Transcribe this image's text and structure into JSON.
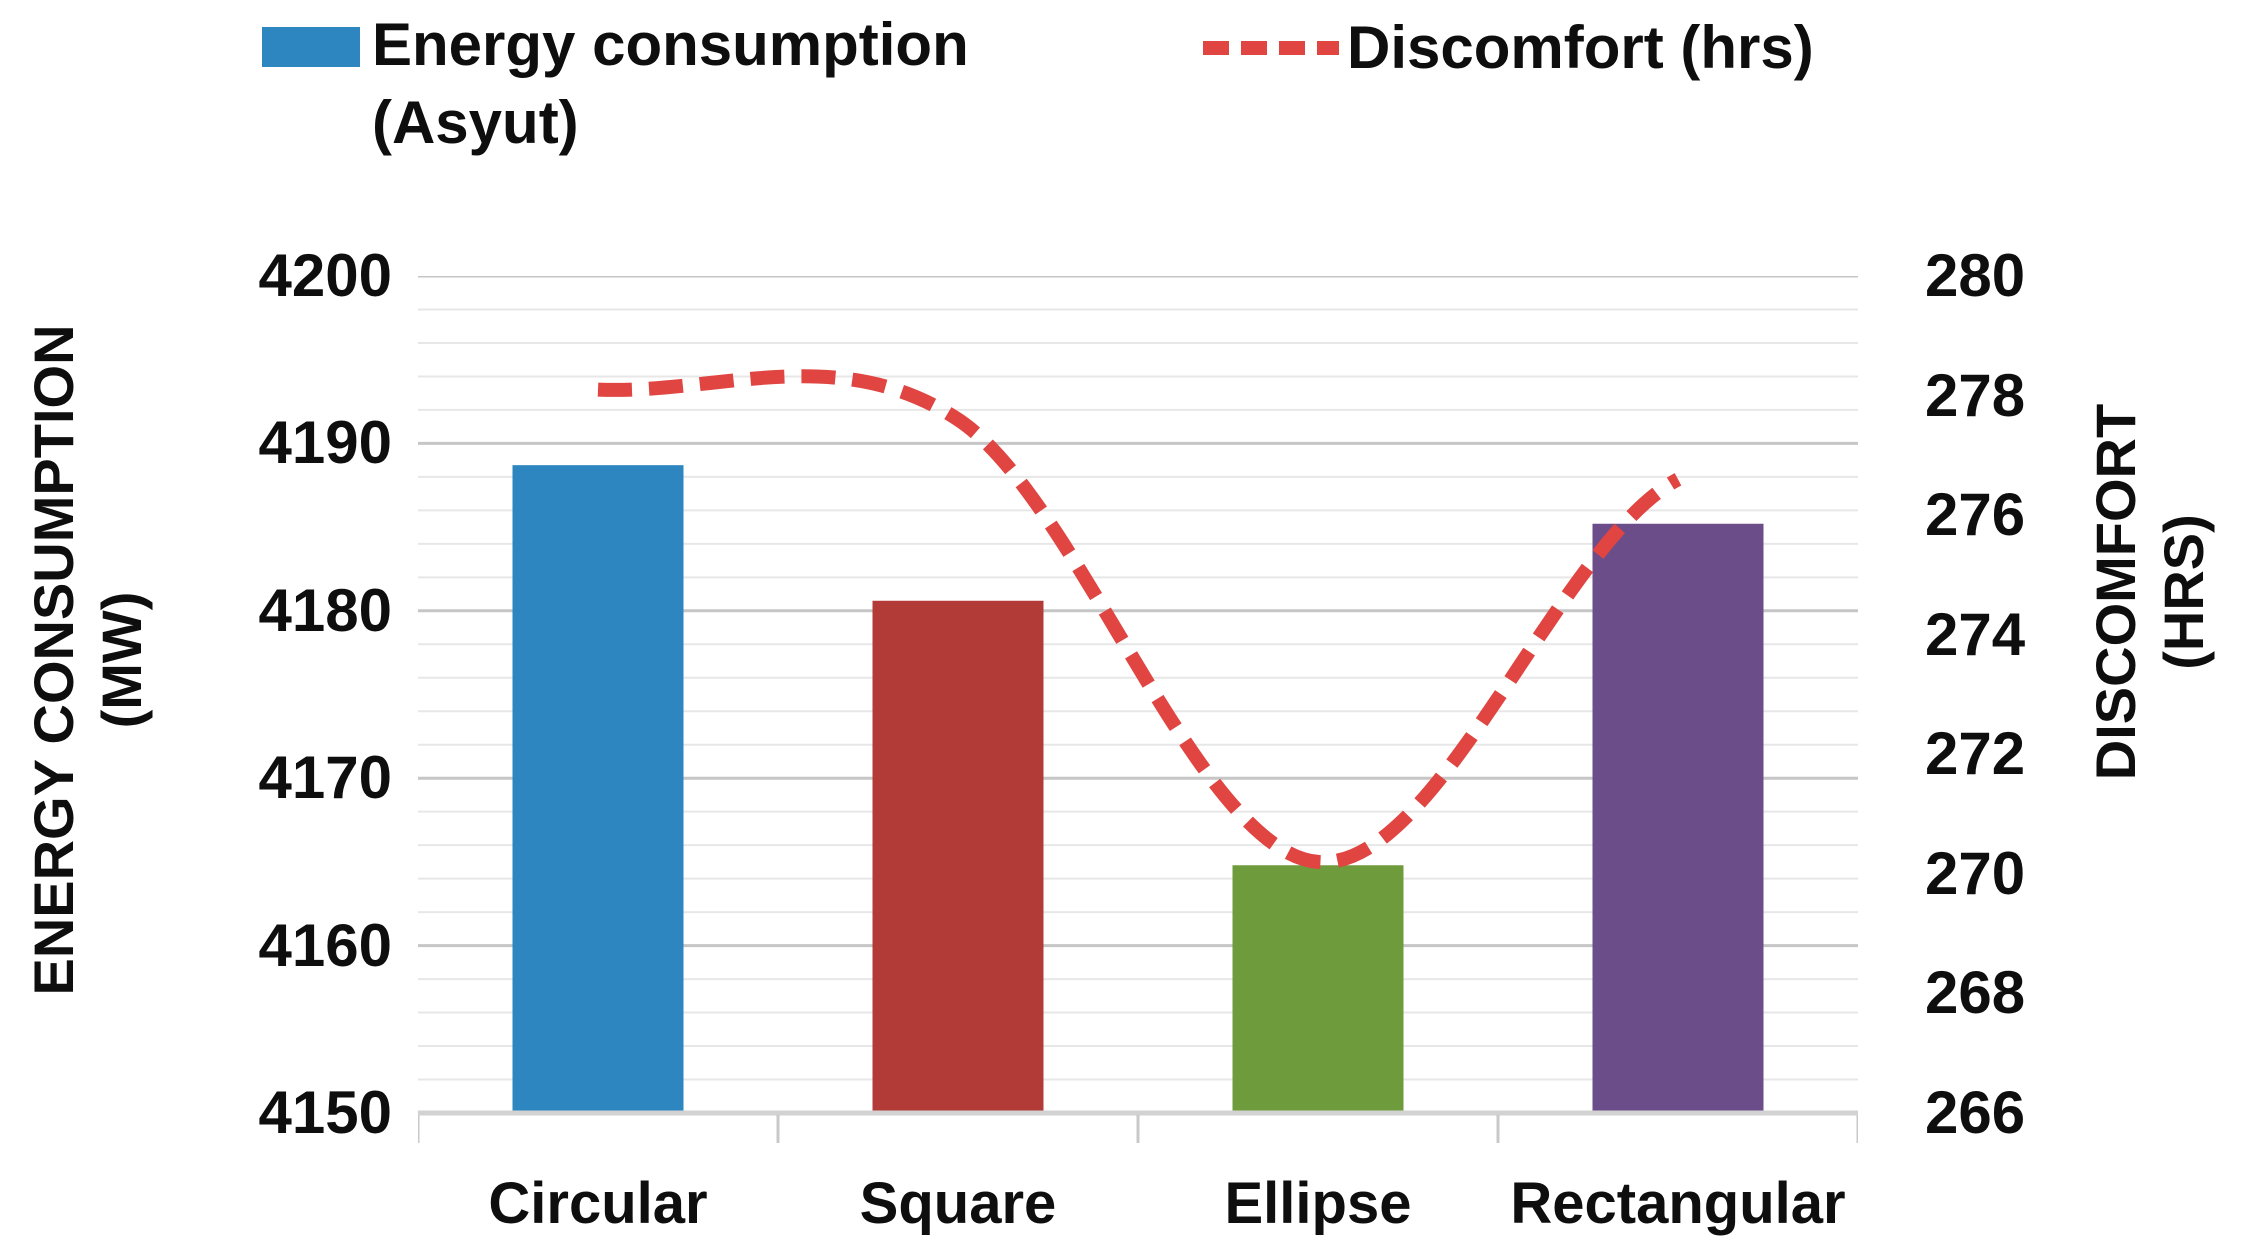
{
  "legend": {
    "energy_line1": "Energy consumption",
    "energy_line2": "(Asyut)",
    "discomfort_label": "Discomfort (hrs)"
  },
  "left_axis_title_line1": "ENERGY CONSUMPTION",
  "left_axis_title_line2": "(MW)",
  "right_axis_title_line1": "DISCOMFORT",
  "right_axis_title_line2": "(HRS)",
  "colors": {
    "bar_blue": "#2E86C1",
    "bar_red": "#B23B38",
    "bar_green": "#6E9C3C",
    "bar_purple": "#6A4D89",
    "line_red": "#E04542",
    "grid_major": "#C6C6C6",
    "grid_minor": "#E7E7E7",
    "axis_line": "#D2D2D2",
    "tick_mark": "#C9C9C9",
    "text": "#0E0E0E",
    "background": "#FFFFFF"
  },
  "chart_data": {
    "type": "bar+line",
    "categories": [
      "Circular",
      "Square",
      "Ellipse",
      "Rectangular"
    ],
    "series": [
      {
        "name": "Energy consumption (Asyut)",
        "type": "bar",
        "axis": "left",
        "unit": "MW",
        "values": [
          4188.7,
          4180.6,
          4164.8,
          4185.2
        ],
        "bar_colors": [
          "#2E86C1",
          "#B23B38",
          "#6E9C3C",
          "#6A4D89"
        ]
      },
      {
        "name": "Discomfort (hrs)",
        "type": "line",
        "axis": "right",
        "unit": "hrs",
        "values": [
          278.1,
          277.6,
          270.2,
          276.6
        ],
        "color": "#E04542",
        "style": "dashed",
        "smooth": true
      }
    ],
    "left_axis": {
      "label": "ENERGY CONSUMPTION (MW)",
      "min": 4150,
      "max": 4200,
      "major_step": 10,
      "minor_step": 2,
      "ticks": [
        4200,
        4190,
        4180,
        4170,
        4160,
        4150
      ]
    },
    "right_axis": {
      "label": "DISCOMFORT (HRS)",
      "min": 266,
      "max": 280,
      "tick_step": 2,
      "ticks": [
        280,
        278,
        276,
        274,
        272,
        270,
        268,
        266
      ]
    },
    "grid": "horizontal",
    "legend_position": "top"
  }
}
